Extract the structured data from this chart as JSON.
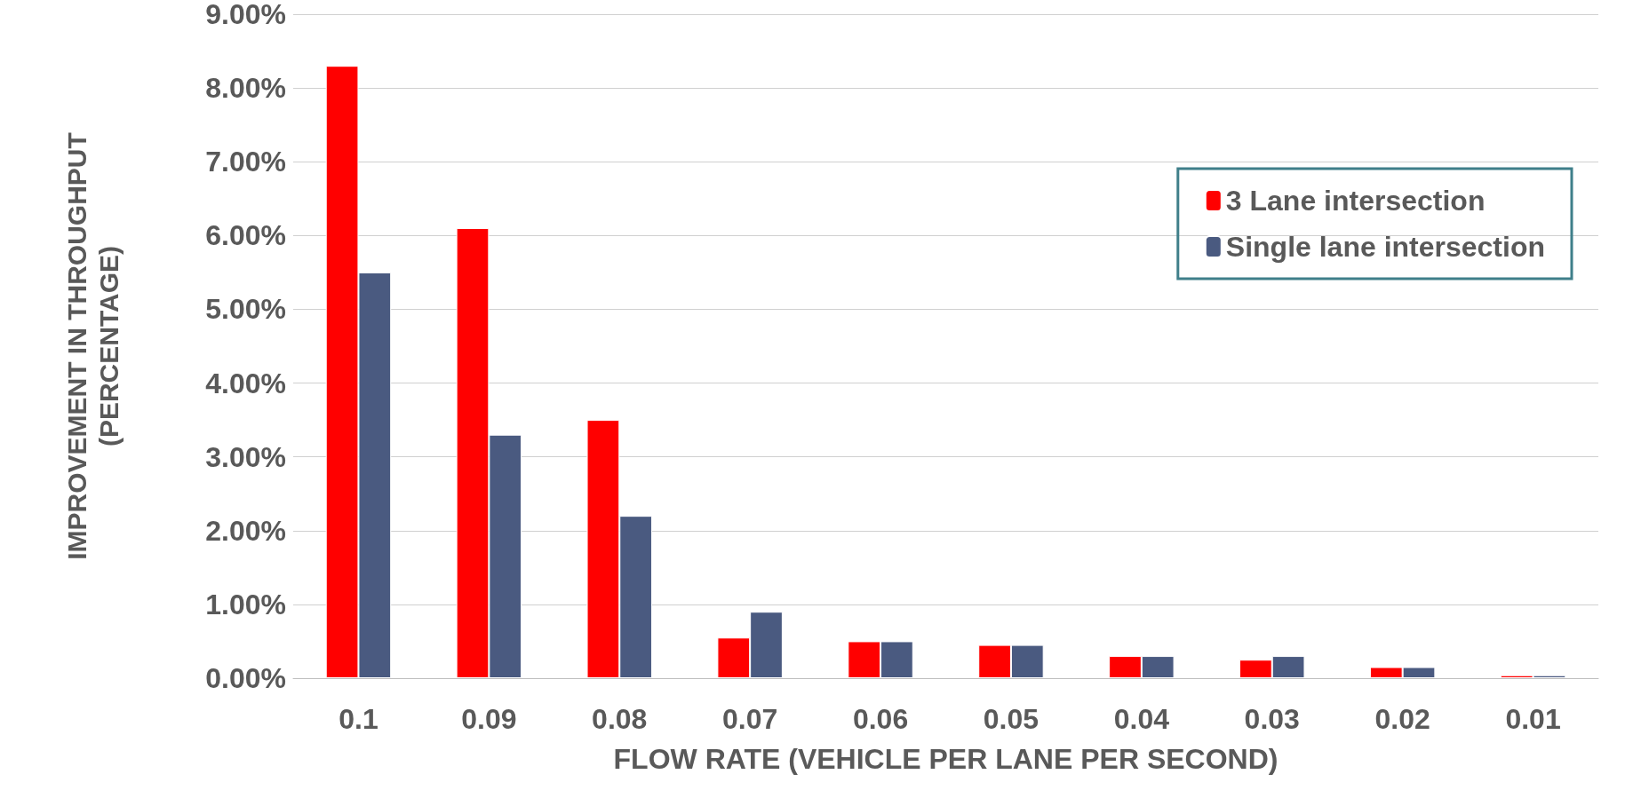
{
  "chart_data": {
    "type": "bar",
    "xlabel": "FLOW RATE (VEHICLE PER LANE PER SECOND)",
    "ylabel": "IMPROVEMENT IN THROUGHPUT\n(PERCENTAGE)",
    "categories": [
      "0.1",
      "0.09",
      "0.08",
      "0.07",
      "0.06",
      "0.05",
      "0.04",
      "0.03",
      "0.02",
      "0.01"
    ],
    "series": [
      {
        "name": "3 Lane intersection",
        "color": "#ff0000",
        "values": [
          8.3,
          6.1,
          3.5,
          0.55,
          0.5,
          0.45,
          0.3,
          0.25,
          0.15,
          0.04
        ]
      },
      {
        "name": "Single lane intersection",
        "color": "#4a5a80",
        "values": [
          5.5,
          3.3,
          2.2,
          0.9,
          0.5,
          0.45,
          0.3,
          0.3,
          0.15,
          0.04
        ]
      }
    ],
    "ylim": [
      0,
      9
    ],
    "yticks": [
      {
        "value": 0,
        "label": "0.00%"
      },
      {
        "value": 1,
        "label": "1.00%"
      },
      {
        "value": 2,
        "label": "2.00%"
      },
      {
        "value": 3,
        "label": "3.00%"
      },
      {
        "value": 4,
        "label": "4.00%"
      },
      {
        "value": 5,
        "label": "5.00%"
      },
      {
        "value": 6,
        "label": "6.00%"
      },
      {
        "value": 7,
        "label": "7.00%"
      },
      {
        "value": 8,
        "label": "8.00%"
      },
      {
        "value": 9,
        "label": "9.00%"
      }
    ],
    "grid": "y",
    "legend": "top right"
  }
}
